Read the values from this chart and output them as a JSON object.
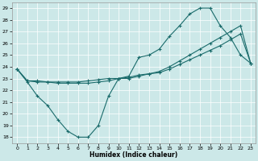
{
  "xlabel": "Humidex (Indice chaleur)",
  "xlim": [
    -0.5,
    23.5
  ],
  "ylim": [
    17.5,
    29.5
  ],
  "yticks": [
    18,
    19,
    20,
    21,
    22,
    23,
    24,
    25,
    26,
    27,
    28,
    29
  ],
  "xticks": [
    0,
    1,
    2,
    3,
    4,
    5,
    6,
    7,
    8,
    9,
    10,
    11,
    12,
    13,
    14,
    15,
    16,
    17,
    18,
    19,
    20,
    21,
    22,
    23
  ],
  "bg_color": "#cce8e8",
  "line_color": "#1a6b6b",
  "line1_x": [
    0,
    1,
    2,
    3,
    4,
    5,
    6,
    7,
    8,
    9,
    10,
    11,
    12,
    13,
    14,
    15,
    16,
    17,
    18,
    19,
    20,
    21,
    22,
    23
  ],
  "line1_y": [
    23.8,
    22.7,
    21.5,
    20.7,
    19.5,
    18.5,
    18.0,
    18.0,
    19.0,
    21.5,
    23.0,
    23.2,
    24.8,
    25.0,
    25.5,
    26.6,
    27.5,
    28.5,
    29.0,
    29.0,
    27.5,
    26.5,
    25.0,
    24.3
  ],
  "line2_x": [
    0,
    1,
    2,
    3,
    4,
    5,
    6,
    7,
    8,
    9,
    10,
    11,
    12,
    13,
    14,
    15,
    16,
    17,
    18,
    19,
    20,
    21,
    22,
    23
  ],
  "line2_y": [
    23.8,
    22.8,
    22.8,
    22.7,
    22.7,
    22.7,
    22.7,
    22.8,
    22.9,
    23.0,
    23.0,
    23.1,
    23.3,
    23.4,
    23.5,
    23.8,
    24.2,
    24.6,
    25.0,
    25.4,
    25.8,
    26.3,
    26.8,
    24.3
  ],
  "line3_x": [
    0,
    1,
    2,
    3,
    4,
    5,
    6,
    7,
    8,
    9,
    10,
    11,
    12,
    13,
    14,
    15,
    16,
    17,
    18,
    19,
    20,
    21,
    22,
    23
  ],
  "line3_y": [
    23.8,
    22.8,
    22.7,
    22.7,
    22.6,
    22.6,
    22.6,
    22.6,
    22.7,
    22.8,
    23.0,
    23.0,
    23.2,
    23.4,
    23.6,
    24.0,
    24.5,
    25.0,
    25.5,
    26.0,
    26.5,
    27.0,
    27.5,
    24.3
  ]
}
